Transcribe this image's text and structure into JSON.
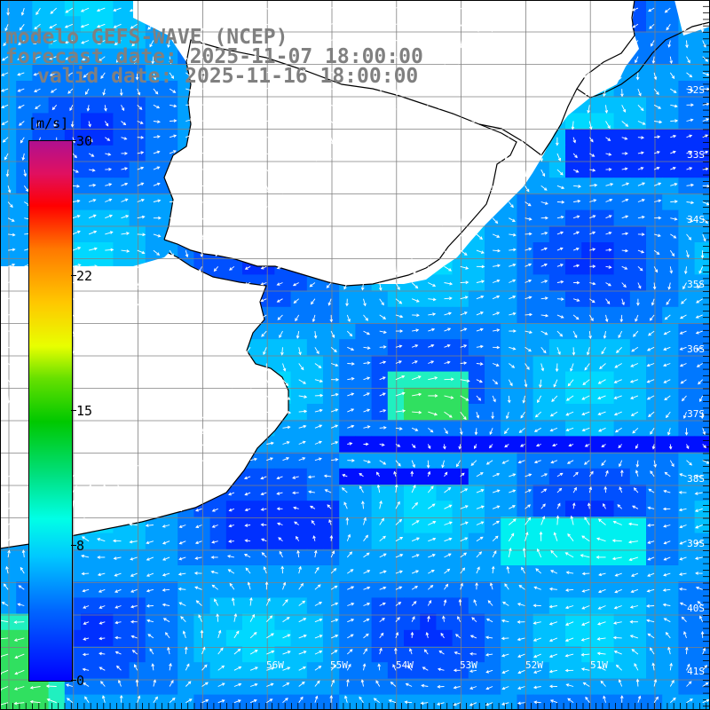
{
  "header": {
    "title": "modelo GEFS-WAVE (NCEP)",
    "forecast": "forecast date: 2025-11-07 18:00:00",
    "valid": "valid date: 2025-11-16 18:00:00"
  },
  "colorbar": {
    "unit": "[m/s]",
    "ticks": [
      "30",
      "22",
      "15",
      "8",
      "0"
    ],
    "tick_values": [
      30,
      22,
      15,
      8,
      0
    ],
    "max": 30,
    "colors": [
      "#0000ff",
      "#00c8ff",
      "#00ffe6",
      "#00c800",
      "#e8ff00",
      "#ff7800",
      "#ff0000",
      "#b01090"
    ]
  },
  "map": {
    "land_color": "#ffffff",
    "coast_color": "#000000",
    "grid_color": "#808080",
    "vector_color": "#ffffff",
    "lat_labels": [
      "32S",
      "33S",
      "34S",
      "35S",
      "36S",
      "37S",
      "38S",
      "39S",
      "40S",
      "41S"
    ],
    "lon_labels": [
      "56W",
      "55W",
      "54W",
      "53W",
      "52W",
      "51W"
    ],
    "field_icon": "wind-arrow-icon"
  }
}
